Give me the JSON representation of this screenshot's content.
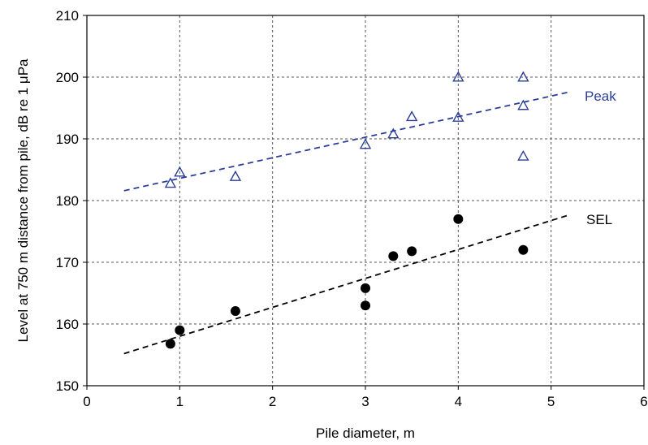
{
  "chart_data": {
    "type": "scatter",
    "title": "",
    "xlabel": "Pile diameter, m",
    "ylabel": "Level at 750 m distance from pile, dB re 1 μPa",
    "xlim": [
      0,
      6
    ],
    "ylim": [
      150,
      210
    ],
    "x_ticks": [
      "0",
      "1",
      "2",
      "3",
      "4",
      "5",
      "6"
    ],
    "y_ticks": [
      "150",
      "160",
      "170",
      "180",
      "190",
      "200",
      "210"
    ],
    "grid": true,
    "series": [
      {
        "name": "Peak",
        "marker": "open-triangle",
        "color": "#2c3e9a",
        "points": [
          {
            "x": 0.9,
            "y": 182.8
          },
          {
            "x": 1.0,
            "y": 184.6
          },
          {
            "x": 1.6,
            "y": 183.9
          },
          {
            "x": 3.0,
            "y": 189.1
          },
          {
            "x": 3.3,
            "y": 190.8
          },
          {
            "x": 3.5,
            "y": 193.6
          },
          {
            "x": 4.0,
            "y": 200.0
          },
          {
            "x": 4.0,
            "y": 193.5
          },
          {
            "x": 4.7,
            "y": 200.0
          },
          {
            "x": 4.7,
            "y": 195.4
          },
          {
            "x": 4.7,
            "y": 187.2
          }
        ],
        "trendline": {
          "x": [
            0.4,
            5.2
          ],
          "y": [
            181.6,
            197.6
          ],
          "style": "dashed"
        }
      },
      {
        "name": "SEL",
        "marker": "filled-circle",
        "color": "#000000",
        "points": [
          {
            "x": 0.9,
            "y": 156.8
          },
          {
            "x": 1.0,
            "y": 159.0
          },
          {
            "x": 1.6,
            "y": 162.1
          },
          {
            "x": 3.0,
            "y": 165.8
          },
          {
            "x": 3.0,
            "y": 163.0
          },
          {
            "x": 3.3,
            "y": 171.0
          },
          {
            "x": 3.5,
            "y": 171.8
          },
          {
            "x": 4.0,
            "y": 177.0
          },
          {
            "x": 4.7,
            "y": 172.0
          }
        ],
        "trendline": {
          "x": [
            0.4,
            5.2
          ],
          "y": [
            155.2,
            177.7
          ],
          "style": "dashed"
        }
      }
    ]
  }
}
